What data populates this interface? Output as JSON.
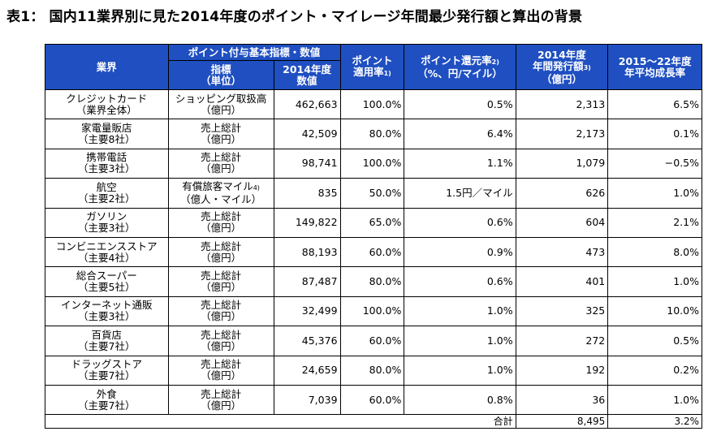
{
  "title": "表1： 国内11業界別に見た2014年度のポイント・マイレージ年間最少発行額と算出の背景",
  "header": {
    "industry": "業界",
    "group": "ポイント付与基本指標・数値",
    "indicator_l1": "指標",
    "indicator_l2": "（単位）",
    "value_l1": "2014年度",
    "value_l2": "数値",
    "rate_l1": "ポイント",
    "rate_l2": "適用率",
    "rate_sup": "1)",
    "return_l1": "ポイント還元率",
    "return_sup": "2)",
    "return_l2": "（%、円/マイル）",
    "issue_l1": "2014年度",
    "issue_l2": "年間発行額",
    "issue_sup": "3)",
    "issue_l3": "（億円）",
    "growth_l1": "2015～22年度",
    "growth_l2": "年平均成長率"
  },
  "rows": [
    {
      "name": "クレジットカード",
      "sub": "（業界全体）",
      "metric": "ショッピング取扱高",
      "unit": "（億円）",
      "value": "462,663",
      "rate": "100.0%",
      "return": "0.5%",
      "issue": "2,313",
      "growth": "6.5%"
    },
    {
      "name": "家電量販店",
      "sub": "（主要8社）",
      "metric": "売上総計",
      "unit": "（億円）",
      "value": "42,509",
      "rate": "80.0%",
      "return": "6.4%",
      "issue": "2,173",
      "growth": "0.1%"
    },
    {
      "name": "携帯電話",
      "sub": "（主要3社）",
      "metric": "売上総計",
      "unit": "（億円）",
      "value": "98,741",
      "rate": "100.0%",
      "return": "1.1%",
      "issue": "1,079",
      "growth": "−0.5%"
    },
    {
      "name": "航空",
      "sub": "（主要2社）",
      "metric": "有償旅客マイル",
      "metric_sup": "4)",
      "unit": "（億人・マイル）",
      "value": "835",
      "rate": "50.0%",
      "return": "1.5円／マイル",
      "issue": "626",
      "growth": "1.0%"
    },
    {
      "name": "ガソリン",
      "sub": "（主要3社）",
      "metric": "売上総計",
      "unit": "（億円）",
      "value": "149,822",
      "rate": "65.0%",
      "return": "0.6%",
      "issue": "604",
      "growth": "2.1%"
    },
    {
      "name": "コンビニエンスストア",
      "sub": "（主要4社）",
      "metric": "売上総計",
      "unit": "（億円）",
      "value": "88,193",
      "rate": "60.0%",
      "return": "0.9%",
      "issue": "473",
      "growth": "8.0%"
    },
    {
      "name": "総合スーパー",
      "sub": "（主要5社）",
      "metric": "売上総計",
      "unit": "（億円）",
      "value": "87,487",
      "rate": "80.0%",
      "return": "0.6%",
      "issue": "401",
      "growth": "1.0%"
    },
    {
      "name": "インターネット通販",
      "sub": "（主要3社）",
      "metric": "売上総計",
      "unit": "（億円）",
      "value": "32,499",
      "rate": "100.0%",
      "return": "1.0%",
      "issue": "325",
      "growth": "10.0%"
    },
    {
      "name": "百貨店",
      "sub": "（主要7社）",
      "metric": "売上総計",
      "unit": "（億円）",
      "value": "45,376",
      "rate": "60.0%",
      "return": "1.0%",
      "issue": "272",
      "growth": "0.5%"
    },
    {
      "name": "ドラッグストア",
      "sub": "（主要7社）",
      "metric": "売上総計",
      "unit": "（億円）",
      "value": "24,659",
      "rate": "80.0%",
      "return": "1.0%",
      "issue": "192",
      "growth": "0.2%"
    },
    {
      "name": "外食",
      "sub": "（主要7社）",
      "metric": "売上総計",
      "unit": "（億円）",
      "value": "7,039",
      "rate": "60.0%",
      "return": "0.8%",
      "issue": "36",
      "growth": "1.0%"
    }
  ],
  "total": {
    "label": "合計",
    "issue": "8,495",
    "growth": "3.2%"
  }
}
